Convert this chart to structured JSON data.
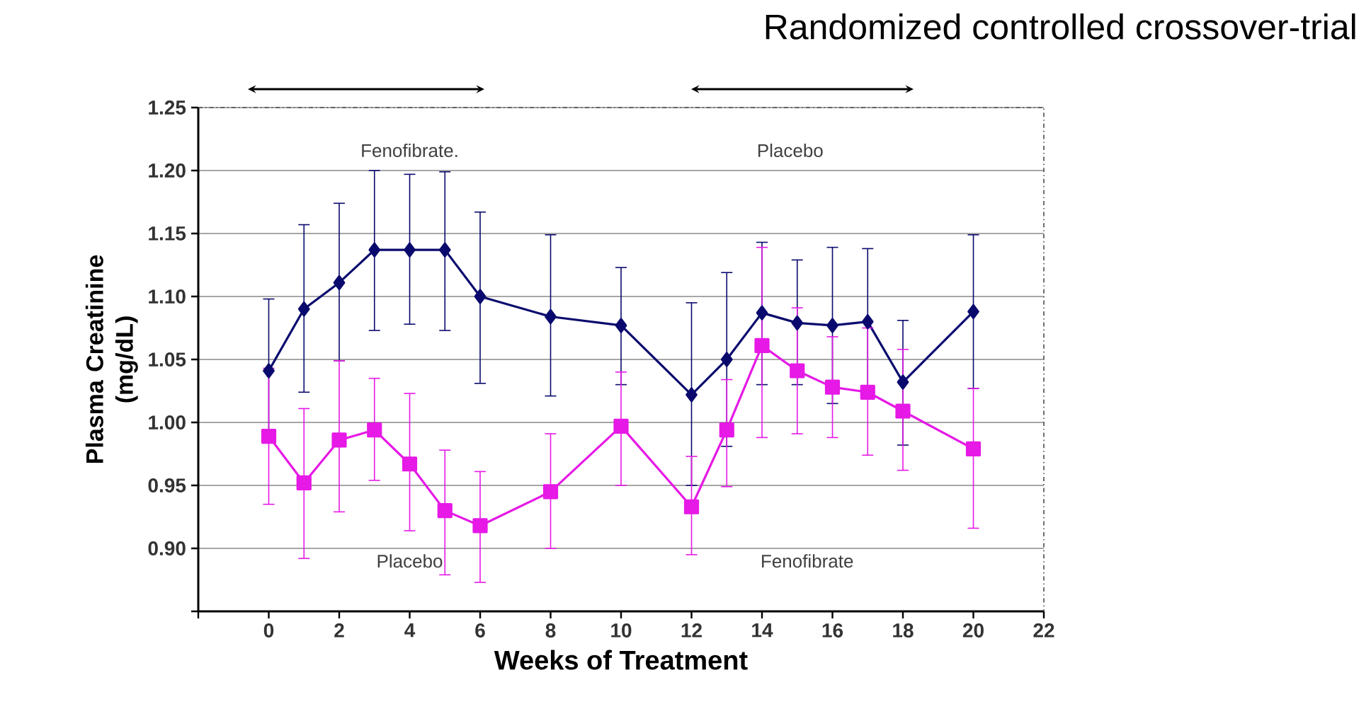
{
  "chart_data": {
    "type": "line",
    "title": "Randomized controlled crossover-trial",
    "xlabel": "Weeks of Treatment",
    "ylabel": "Plasma Creatinine (mg/dL)",
    "x": [
      0,
      1,
      2,
      3,
      4,
      5,
      6,
      8,
      10,
      12,
      13,
      14,
      15,
      16,
      17,
      18,
      20
    ],
    "series": [
      {
        "color": "#0a0a6e",
        "marker": "diamond",
        "values": [
          1.041,
          1.09,
          1.111,
          1.137,
          1.137,
          1.137,
          1.1,
          1.084,
          1.077,
          1.022,
          1.05,
          1.087,
          1.079,
          1.077,
          1.08,
          1.032,
          1.088
        ],
        "errors": [
          [
            0.985,
            1.098
          ],
          [
            1.024,
            1.157
          ],
          [
            1.049,
            1.174
          ],
          [
            1.073,
            1.2
          ],
          [
            1.078,
            1.197
          ],
          [
            1.073,
            1.199
          ],
          [
            1.031,
            1.167
          ],
          [
            1.021,
            1.149
          ],
          [
            1.03,
            1.123
          ],
          [
            0.95,
            1.095
          ],
          [
            0.981,
            1.119
          ],
          [
            1.03,
            1.143
          ],
          [
            1.03,
            1.129
          ],
          [
            1.015,
            1.139
          ],
          [
            1.02,
            1.138
          ],
          [
            0.982,
            1.081
          ],
          [
            1.027,
            1.149
          ]
        ]
      },
      {
        "color": "#e619e6",
        "marker": "square",
        "values": [
          0.989,
          0.952,
          0.986,
          0.994,
          0.967,
          0.93,
          0.918,
          0.945,
          0.997,
          0.933,
          0.994,
          1.061,
          1.041,
          1.028,
          1.024,
          1.009,
          0.979
        ],
        "errors": [
          [
            0.935,
            1.043
          ],
          [
            0.892,
            1.011
          ],
          [
            0.929,
            1.049
          ],
          [
            0.954,
            1.035
          ],
          [
            0.914,
            1.023
          ],
          [
            0.879,
            0.978
          ],
          [
            0.873,
            0.961
          ],
          [
            0.9,
            0.991
          ],
          [
            0.95,
            1.04
          ],
          [
            0.895,
            0.973
          ],
          [
            0.949,
            1.034
          ],
          [
            0.988,
            1.139
          ],
          [
            0.991,
            1.091
          ],
          [
            0.988,
            1.068
          ],
          [
            0.974,
            1.075
          ],
          [
            0.962,
            1.058
          ],
          [
            0.916,
            1.027
          ]
        ]
      }
    ],
    "xlim": [
      -2,
      22
    ],
    "xticks": [
      {
        "value": -2,
        "label": null
      },
      0,
      2,
      4,
      6,
      8,
      10,
      12,
      14,
      16,
      18,
      20,
      22
    ],
    "ylim": [
      0.85,
      1.25
    ],
    "yticks": [
      {
        "value": 0.85,
        "label": null
      },
      {
        "value": 0.9,
        "label": "0.90"
      },
      {
        "value": 0.95,
        "label": "0.95"
      },
      {
        "value": 1.0,
        "label": "1.00"
      },
      {
        "value": 1.05,
        "label": "1.05"
      },
      {
        "value": 1.1,
        "label": "1.10"
      },
      {
        "value": 1.15,
        "label": "1.15"
      },
      {
        "value": 1.2,
        "label": "1.20"
      },
      {
        "value": 1.25,
        "label": "1.25"
      }
    ],
    "grid": "y",
    "line_style": "solid",
    "annotations": [
      "Fenofibrate.",
      "Placebo",
      "Placebo",
      "Fenofibrate"
    ]
  }
}
